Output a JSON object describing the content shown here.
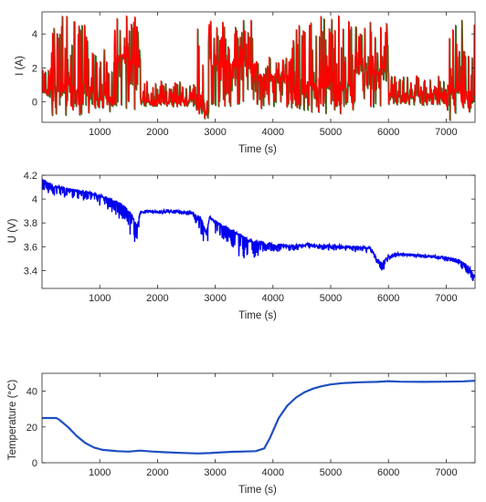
{
  "chart_data": [
    {
      "type": "line",
      "title": "",
      "xlabel": "Time (s)",
      "ylabel": "I (A)",
      "xlim": [
        0,
        7500
      ],
      "ylim": [
        -1.2,
        5.3
      ],
      "xticks": [
        1000,
        2000,
        3000,
        4000,
        5000,
        6000,
        7000
      ],
      "xtick_labels": [
        "1000",
        "2000",
        "3000",
        "4000",
        "5000",
        "6000",
        "7000"
      ],
      "yticks": [
        0,
        2,
        4
      ],
      "ytick_labels": [
        "0",
        "2",
        "4"
      ],
      "grid": false,
      "colors": {
        "line": "#ff0000",
        "shadow": "#2f7d2f"
      },
      "series": [
        {
          "style": "dense-pulse",
          "segments": [
            {
              "t0": 0,
              "t1": 150,
              "base": 0.6,
              "lo": 0.2,
              "hi": 2.0
            },
            {
              "t0": 150,
              "t1": 900,
              "base": 0.8,
              "lo": -0.8,
              "hi": 5.1
            },
            {
              "t0": 900,
              "t1": 1250,
              "base": 0.3,
              "lo": -0.6,
              "hi": 3.2
            },
            {
              "t0": 1250,
              "t1": 1700,
              "base": 2.5,
              "lo": -0.6,
              "hi": 5.1
            },
            {
              "t0": 1700,
              "t1": 2650,
              "base": 0.1,
              "lo": -0.3,
              "hi": 1.3
            },
            {
              "t0": 2650,
              "t1": 2800,
              "base": 0.4,
              "lo": -0.7,
              "hi": 5.0
            },
            {
              "t0": 2800,
              "t1": 2880,
              "base": -0.5,
              "lo": -1.1,
              "hi": 0.1
            },
            {
              "t0": 2880,
              "t1": 3650,
              "base": 2.3,
              "lo": -0.3,
              "hi": 4.9
            },
            {
              "t0": 3650,
              "t1": 4300,
              "base": 1.4,
              "lo": -0.5,
              "hi": 2.8
            },
            {
              "t0": 4300,
              "t1": 5400,
              "base": 1.0,
              "lo": -0.7,
              "hi": 5.1
            },
            {
              "t0": 5400,
              "t1": 6000,
              "base": 1.9,
              "lo": -0.4,
              "hi": 5.1
            },
            {
              "t0": 6000,
              "t1": 7000,
              "base": 0.3,
              "lo": -0.2,
              "hi": 1.6
            },
            {
              "t0": 7000,
              "t1": 7250,
              "base": 0.8,
              "lo": -1.1,
              "hi": 5.0
            },
            {
              "t0": 7250,
              "t1": 7500,
              "base": 0.4,
              "lo": -0.6,
              "hi": 5.1
            }
          ]
        }
      ]
    },
    {
      "type": "line",
      "title": "",
      "xlabel": "Time (s)",
      "ylabel": "U (V)",
      "xlim": [
        0,
        7500
      ],
      "ylim": [
        3.25,
        4.2
      ],
      "xticks": [
        1000,
        2000,
        3000,
        4000,
        5000,
        6000,
        7000
      ],
      "xtick_labels": [
        "1000",
        "2000",
        "3000",
        "4000",
        "5000",
        "6000",
        "7000"
      ],
      "yticks": [
        3.4,
        3.6,
        3.8,
        4.0,
        4.2
      ],
      "ytick_labels": [
        "3.4",
        "3.6",
        "3.8",
        "4",
        "4.2"
      ],
      "grid": false,
      "colors": {
        "line": "#0000ee"
      },
      "series": [
        {
          "style": "noisy-envelope",
          "envelope_x": [
            0,
            200,
            500,
            800,
            1000,
            1200,
            1400,
            1550,
            1650,
            1700,
            1800,
            2000,
            2300,
            2600,
            2750,
            2850,
            2900,
            3000,
            3200,
            3400,
            3600,
            3800,
            4000,
            4300,
            4600,
            5000,
            5400,
            5700,
            5800,
            5900,
            6000,
            6200,
            6500,
            6800,
            7000,
            7200,
            7400,
            7500
          ],
          "envelope_y": [
            4.17,
            4.12,
            4.09,
            4.07,
            4.04,
            4.01,
            3.96,
            3.88,
            3.78,
            3.9,
            3.91,
            3.91,
            3.91,
            3.9,
            3.85,
            3.72,
            3.86,
            3.82,
            3.77,
            3.72,
            3.66,
            3.65,
            3.63,
            3.62,
            3.63,
            3.62,
            3.61,
            3.6,
            3.5,
            3.48,
            3.53,
            3.55,
            3.54,
            3.53,
            3.52,
            3.5,
            3.44,
            3.35
          ],
          "dip_depth": [
            0.1,
            0.1,
            0.08,
            0.09,
            0.1,
            0.12,
            0.15,
            0.2,
            0.19,
            0.03,
            0.03,
            0.03,
            0.03,
            0.04,
            0.15,
            0.25,
            0.13,
            0.12,
            0.14,
            0.2,
            0.22,
            0.1,
            0.08,
            0.06,
            0.05,
            0.05,
            0.05,
            0.05,
            0.08,
            0.1,
            0.05,
            0.02,
            0.02,
            0.03,
            0.04,
            0.05,
            0.08,
            0.07
          ]
        }
      ]
    },
    {
      "type": "line",
      "title": "",
      "xlabel": "Time (s)",
      "ylabel": "Temperature (°C)",
      "xlim": [
        0,
        7500
      ],
      "ylim": [
        0,
        50
      ],
      "xticks": [
        1000,
        2000,
        3000,
        4000,
        5000,
        6000,
        7000
      ],
      "xtick_labels": [
        "1000",
        "2000",
        "3000",
        "4000",
        "5000",
        "6000",
        "7000"
      ],
      "yticks": [
        0,
        20,
        40
      ],
      "ytick_labels": [
        "0",
        "20",
        "40"
      ],
      "grid": false,
      "colors": {
        "line": "#1f4fbf"
      },
      "series": [
        {
          "style": "smooth",
          "x": [
            0,
            250,
            300,
            450,
            600,
            750,
            900,
            1050,
            1300,
            1500,
            1700,
            1900,
            2100,
            2400,
            2700,
            2900,
            3100,
            3300,
            3500,
            3700,
            3850,
            3950,
            4100,
            4250,
            4400,
            4550,
            4700,
            4850,
            5000,
            5200,
            5500,
            5800,
            6000,
            6200,
            6600,
            7000,
            7300,
            7500
          ],
          "y": [
            25,
            25,
            24,
            20,
            15,
            11,
            8.5,
            7.2,
            6.5,
            6.2,
            6.8,
            6.3,
            5.9,
            5.5,
            5.2,
            5.4,
            5.8,
            6.1,
            6.3,
            6.5,
            8,
            14,
            25,
            32,
            36.5,
            39.5,
            41.5,
            42.8,
            43.8,
            44.5,
            45,
            45.2,
            45.6,
            45.3,
            45.2,
            45.3,
            45.5,
            45.8
          ]
        }
      ]
    }
  ]
}
